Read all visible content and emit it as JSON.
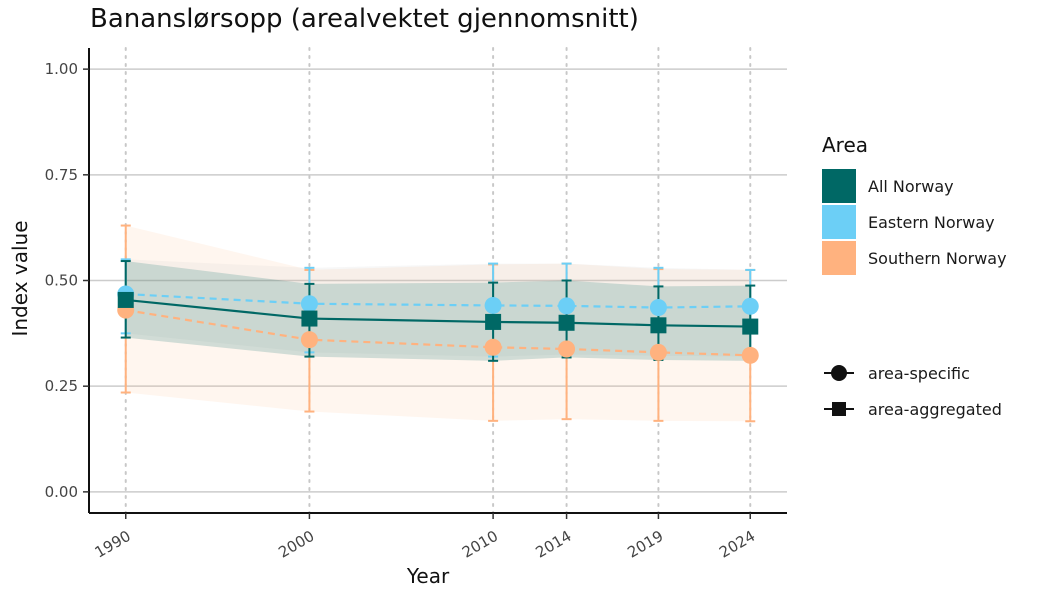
{
  "chart_data": {
    "type": "line",
    "title": "Bananslørsopp (arealvektet gjennomsnitt)",
    "xlabel": "Year",
    "ylabel": "Index value",
    "x": [
      1990,
      2000,
      2010,
      2014,
      2019,
      2024
    ],
    "x_tick_labels": [
      "1990",
      "2000",
      "2010",
      "2014",
      "2019",
      "2024"
    ],
    "xlim": [
      1988,
      2026
    ],
    "ylim": [
      -0.05,
      1.05
    ],
    "y_ticks": [
      0.0,
      0.25,
      0.5,
      0.75,
      1.0
    ],
    "y_tick_labels": [
      "0.00",
      "0.25",
      "0.50",
      "0.75",
      "1.00"
    ],
    "grid": "horizontal major, vertical dotted at years",
    "legend_position": "right",
    "legend_area_title": "Area",
    "legend_shapes": [
      {
        "label": "area-specific",
        "shape": "circle"
      },
      {
        "label": "area-aggregated",
        "shape": "square"
      }
    ],
    "series": [
      {
        "name": "Southern Norway",
        "color": "#ffb27f",
        "shape": "circle",
        "line": "dashed",
        "values": [
          0.43,
          0.36,
          0.342,
          0.338,
          0.33,
          0.323
        ],
        "ci_lower": [
          0.235,
          0.19,
          0.168,
          0.172,
          0.168,
          0.167
        ],
        "ci_upper": [
          0.63,
          0.525,
          0.538,
          0.54,
          0.527,
          0.525
        ]
      },
      {
        "name": "Eastern Norway",
        "color": "#6ccff6",
        "shape": "circle",
        "line": "dashed",
        "values": [
          0.468,
          0.445,
          0.441,
          0.44,
          0.436,
          0.439
        ],
        "ci_lower": [
          0.375,
          0.33,
          0.32,
          0.325,
          0.322,
          0.32
        ],
        "ci_upper": [
          0.55,
          0.53,
          0.54,
          0.54,
          0.53,
          0.525
        ]
      },
      {
        "name": "All Norway",
        "color": "#006865",
        "shape": "square",
        "line": "solid",
        "values": [
          0.454,
          0.41,
          0.402,
          0.4,
          0.394,
          0.391
        ],
        "ci_lower": [
          0.365,
          0.32,
          0.31,
          0.318,
          0.312,
          0.31
        ],
        "ci_upper": [
          0.546,
          0.492,
          0.495,
          0.5,
          0.486,
          0.488
        ]
      }
    ]
  }
}
